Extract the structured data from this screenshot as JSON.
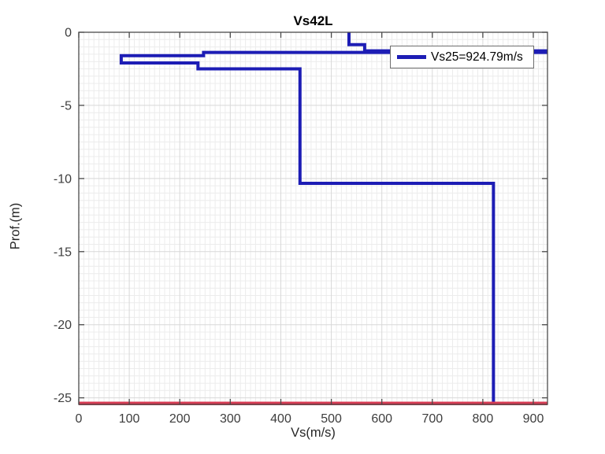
{
  "figure": {
    "title": "Vs42L",
    "xlabel": "Vs(m/s)",
    "ylabel": "Prof.(m)"
  },
  "legend": {
    "label": "Vs25=924.79m/s"
  },
  "colors": {
    "profile_line": "#1d1db5",
    "boundary_line": "#d73a52",
    "grid_major": "#d8d8d8",
    "grid_minor": "#ececec",
    "axis_box": "#4a4a4a",
    "tick_text": "#3d3d3d",
    "legend_border": "#6e6e6e"
  },
  "chart_data": {
    "type": "line",
    "title": "Vs42L",
    "xlabel": "Vs(m/s)",
    "ylabel": "Prof.(m)",
    "xlim": [
      0,
      928
    ],
    "ylim": [
      -25.45,
      0
    ],
    "x_ticks": [
      0,
      100,
      200,
      300,
      400,
      500,
      600,
      700,
      800,
      900
    ],
    "y_ticks": [
      0,
      -5,
      -10,
      -15,
      -20,
      -25
    ],
    "minor_grid": {
      "enabled": true,
      "x_step": 10,
      "y_step": 0.5
    },
    "grid": "on",
    "legend_position": "top-right",
    "legend_entries": [
      "Vs25=924.79m/s"
    ],
    "series": [
      {
        "id": "vs-profile-line",
        "name": "Vs25=924.79m/s",
        "color": "#1d1db5",
        "width": 4,
        "points": [
          [
            535,
            0
          ],
          [
            535,
            -0.85
          ],
          [
            566,
            -0.85
          ],
          [
            566,
            -1.27
          ],
          [
            960,
            -1.27
          ],
          [
            960,
            -1.38
          ],
          [
            247,
            -1.38
          ],
          [
            247,
            -1.6
          ],
          [
            84,
            -1.6
          ],
          [
            84,
            -2.1
          ],
          [
            236,
            -2.1
          ],
          [
            236,
            -2.5
          ],
          [
            438,
            -2.5
          ],
          [
            438,
            -10.33
          ],
          [
            821,
            -10.33
          ],
          [
            821,
            -25.32
          ]
        ]
      },
      {
        "id": "bottom-boundary-line",
        "color": "#d73a52",
        "width": 4.5,
        "points": [
          [
            0,
            -25.38
          ],
          [
            928,
            -25.38
          ]
        ]
      }
    ]
  }
}
